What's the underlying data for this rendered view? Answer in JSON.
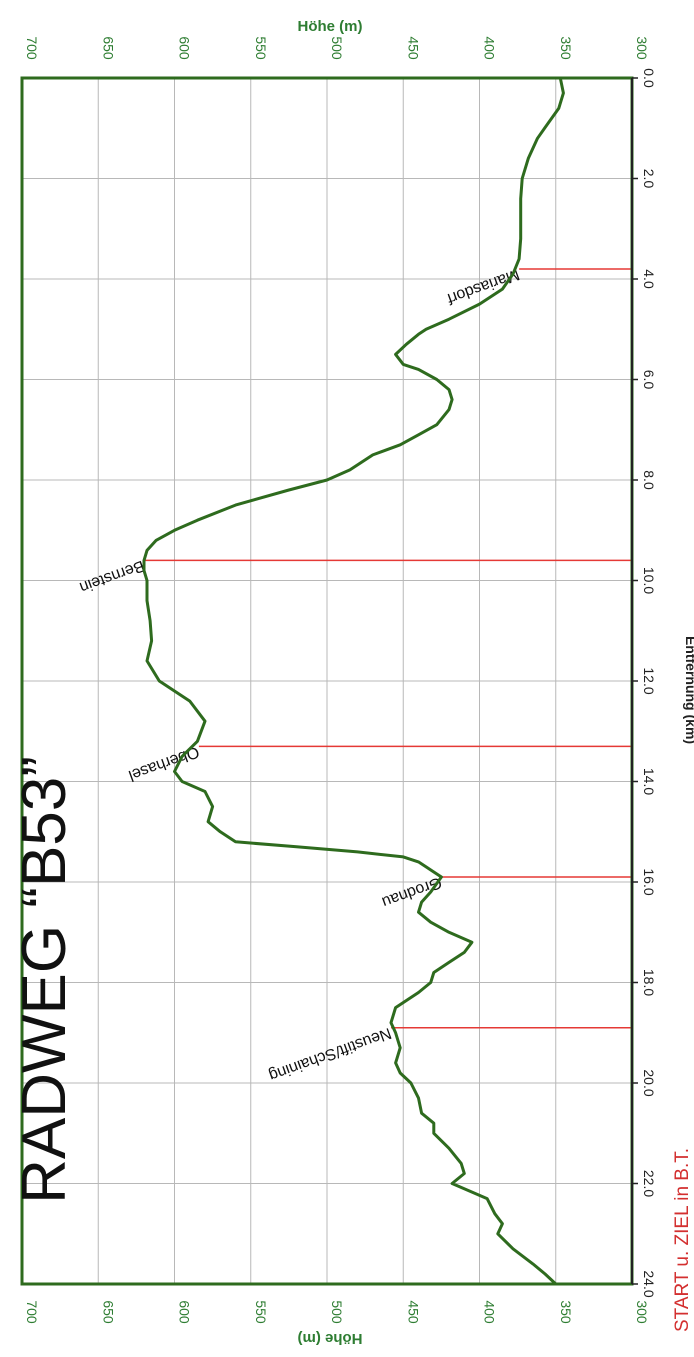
{
  "chart_data": {
    "type": "line",
    "title": "RADWEG “B53”",
    "subtitle": "START u. ZIEL in B.T.",
    "xlabel": "Entfernung (km)",
    "ylabel": "Höhe (m)",
    "xlim": [
      0,
      24
    ],
    "ylim": [
      300,
      700
    ],
    "grid": true,
    "x_ticks": [
      "0.0",
      "2.0",
      "4.0",
      "6.0",
      "8.0",
      "10.0",
      "12.0",
      "14.0",
      "16.0",
      "18.0",
      "20.0",
      "22.0",
      "24.0"
    ],
    "y_ticks": [
      "300",
      "350",
      "400",
      "450",
      "500",
      "550",
      "600",
      "650",
      "700"
    ],
    "series": [
      {
        "x": [
          0.0,
          0.3,
          0.6,
          0.9,
          1.2,
          1.6,
          2.0,
          2.4,
          2.8,
          3.2,
          3.6,
          3.9,
          4.2,
          4.5,
          4.8,
          5.0,
          5.1,
          5.3,
          5.5,
          5.7,
          5.8,
          6.0,
          6.2,
          6.4,
          6.6,
          6.9,
          7.1,
          7.3,
          7.5,
          7.8,
          8.0,
          8.2,
          8.5,
          8.8,
          9.0,
          9.2,
          9.4,
          9.6,
          9.8,
          10.0,
          10.4,
          10.8,
          11.2,
          11.6,
          12.0,
          12.4,
          12.8,
          13.2,
          13.5,
          13.8,
          14.0,
          14.2,
          14.5,
          14.8,
          15.0,
          15.2,
          15.3,
          15.4,
          15.5,
          15.6,
          15.7,
          15.8,
          15.9,
          16.2,
          16.4,
          16.6,
          16.8,
          17.0,
          17.2,
          17.4,
          17.6,
          17.8,
          18.0,
          18.2,
          18.5,
          18.8,
          19.0,
          19.3,
          19.6,
          19.8,
          20.0,
          20.3,
          20.6,
          20.8,
          21.0,
          21.3,
          21.6,
          21.8,
          22.0,
          22.3,
          22.6,
          22.8,
          23.0,
          23.3,
          23.6,
          23.8,
          24.0
        ],
        "values": [
          347,
          345,
          348,
          355,
          362,
          368,
          372,
          373,
          373,
          373,
          374,
          378,
          385,
          400,
          420,
          435,
          440,
          448,
          455,
          450,
          440,
          428,
          420,
          418,
          420,
          428,
          440,
          452,
          470,
          485,
          500,
          525,
          560,
          585,
          600,
          612,
          618,
          620,
          620,
          618,
          618,
          616,
          615,
          618,
          610,
          590,
          580,
          585,
          595,
          600,
          595,
          580,
          575,
          578,
          570,
          560,
          520,
          480,
          450,
          440,
          435,
          430,
          425,
          432,
          438,
          440,
          432,
          420,
          405,
          410,
          420,
          430,
          432,
          440,
          455,
          458,
          455,
          452,
          455,
          452,
          445,
          440,
          438,
          430,
          430,
          420,
          412,
          410,
          418,
          395,
          390,
          385,
          388,
          378,
          365,
          357,
          350
        ]
      }
    ],
    "markers": [
      {
        "label": "Mariasdorf",
        "x": 3.8,
        "y": 374
      },
      {
        "label": "Bernstein",
        "x": 9.6,
        "y": 620
      },
      {
        "label": "Oberhasel",
        "x": 13.3,
        "y": 584
      },
      {
        "label": "Grodnau",
        "x": 15.9,
        "y": 425
      },
      {
        "label": "Neustift/Schaining",
        "x": 18.9,
        "y": 458
      }
    ]
  },
  "colors": {
    "line": "#2e6b1e",
    "marker": "#e53935",
    "grid": "#b8b8b8",
    "axis_label": "#2e7d32",
    "subtitle": "#d32f2f"
  }
}
